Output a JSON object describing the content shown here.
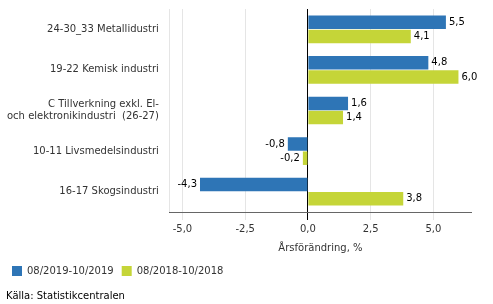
{
  "chart_data": {
    "type": "bar",
    "orientation": "horizontal",
    "categories": [
      "16-17 Skogsindustri",
      "10-11 Livsmedelsindustri",
      "C Tillverkning exkl. El-\noch elektronikindustri  (26-27)",
      "19-22 Kemisk industri",
      "24-30_33 Metallidustri"
    ],
    "series": [
      {
        "name": "08/2019-10/2019",
        "color": "#2E75B6",
        "values": [
          -4.3,
          -0.8,
          1.6,
          4.8,
          5.5
        ],
        "value_labels": [
          "-4,3",
          "-0,8",
          "1,6",
          "4,8",
          "5,5"
        ]
      },
      {
        "name": "08/2018-10/2018",
        "color": "#C5D538",
        "values": [
          3.8,
          -0.2,
          1.4,
          6.0,
          4.1
        ],
        "value_labels": [
          "3,8",
          "-0,2",
          "1,4",
          "6,0",
          "4,1"
        ]
      }
    ],
    "xlabel": "Årsförändring, %",
    "xlim": [
      -5.5,
      6.5
    ],
    "xticks": [
      {
        "value": -5.0,
        "label": "-5,0"
      },
      {
        "value": -2.5,
        "label": "-2,5"
      },
      {
        "value": 0.0,
        "label": "0,0"
      },
      {
        "value": 2.5,
        "label": "2,5"
      },
      {
        "value": 5.0,
        "label": "5,0"
      }
    ],
    "grid": true,
    "legend": "bottom",
    "data_labels": true,
    "annotations": [
      "Källa: Statistikcentralen"
    ]
  }
}
